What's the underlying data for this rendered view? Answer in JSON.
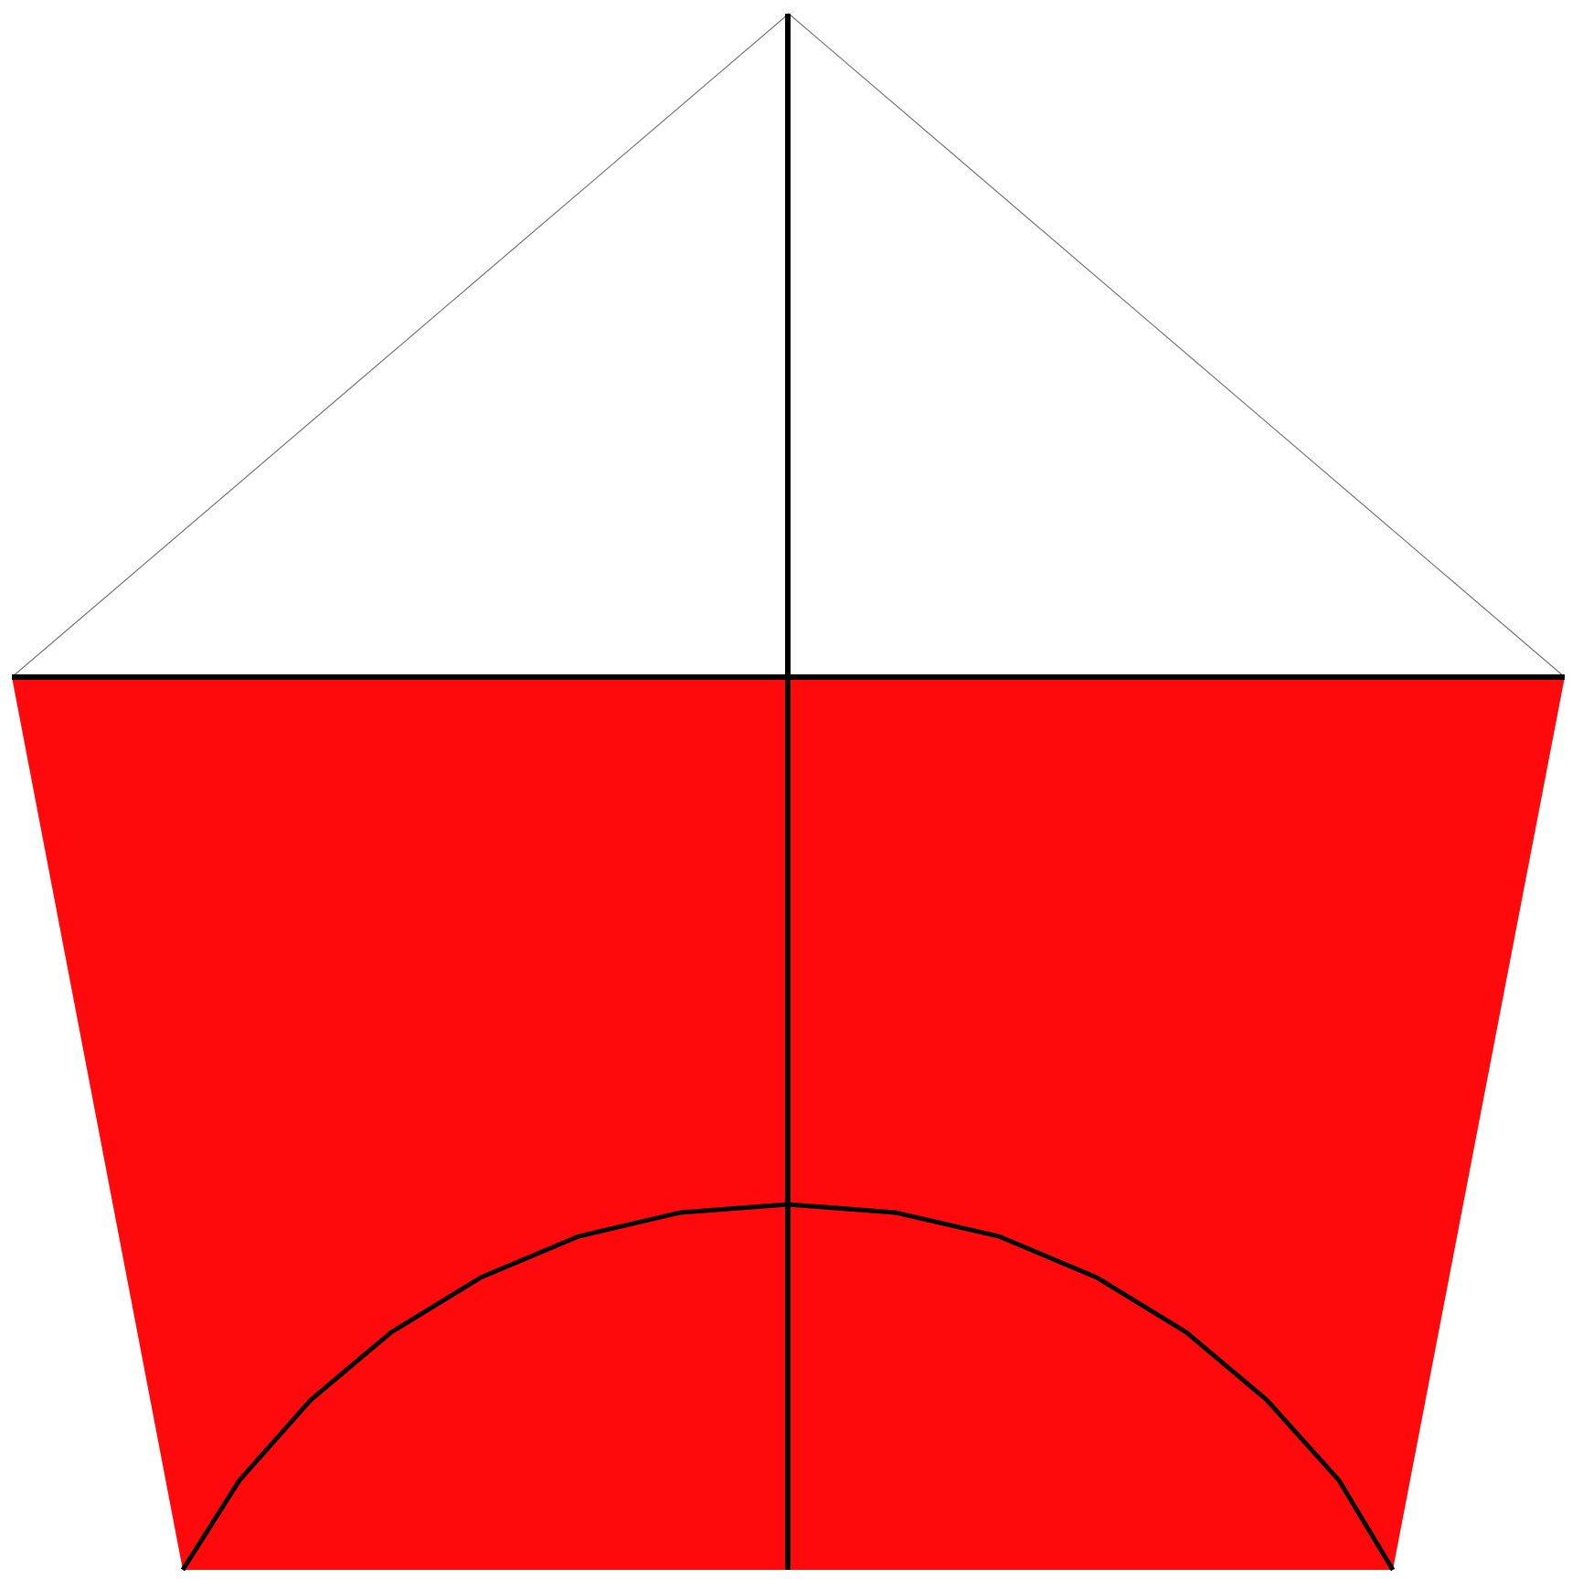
{
  "colors": {
    "background": "#ffffff",
    "fill": "#ff0a0c",
    "stroke": "#000000",
    "thin_stroke": "#777777"
  },
  "shapes": [
    "thin-outline-triangle",
    "red-trapezoid",
    "vertical-axis-line",
    "horizontal-base-line",
    "curved-arc-line"
  ]
}
